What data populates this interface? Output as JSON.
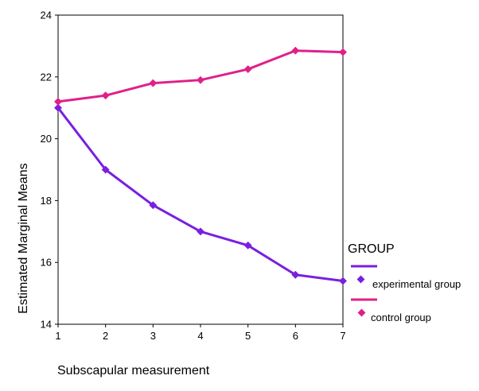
{
  "chart_data": {
    "type": "line",
    "title": "",
    "xlabel": "Subscapular measurement",
    "ylabel": "Estimated Marginal Means",
    "x": [
      1,
      2,
      3,
      4,
      5,
      6,
      7
    ],
    "x_ticks": [
      "1",
      "2",
      "3",
      "4",
      "5",
      "6",
      "7"
    ],
    "y_ticks": [
      "14",
      "16",
      "18",
      "20",
      "22",
      "24"
    ],
    "ylim": [
      14,
      24
    ],
    "xlim": [
      1,
      7
    ],
    "grid": false,
    "legend": {
      "title": "GROUP",
      "placement": "right"
    },
    "series": [
      {
        "name": "experimental group",
        "color": "#7a1fe0",
        "values": [
          21.0,
          19.0,
          17.85,
          17.0,
          16.55,
          15.6,
          15.4
        ]
      },
      {
        "name": "control group",
        "color": "#e0208a",
        "values": [
          21.2,
          21.4,
          21.8,
          21.9,
          22.25,
          22.85,
          22.8
        ]
      }
    ]
  }
}
